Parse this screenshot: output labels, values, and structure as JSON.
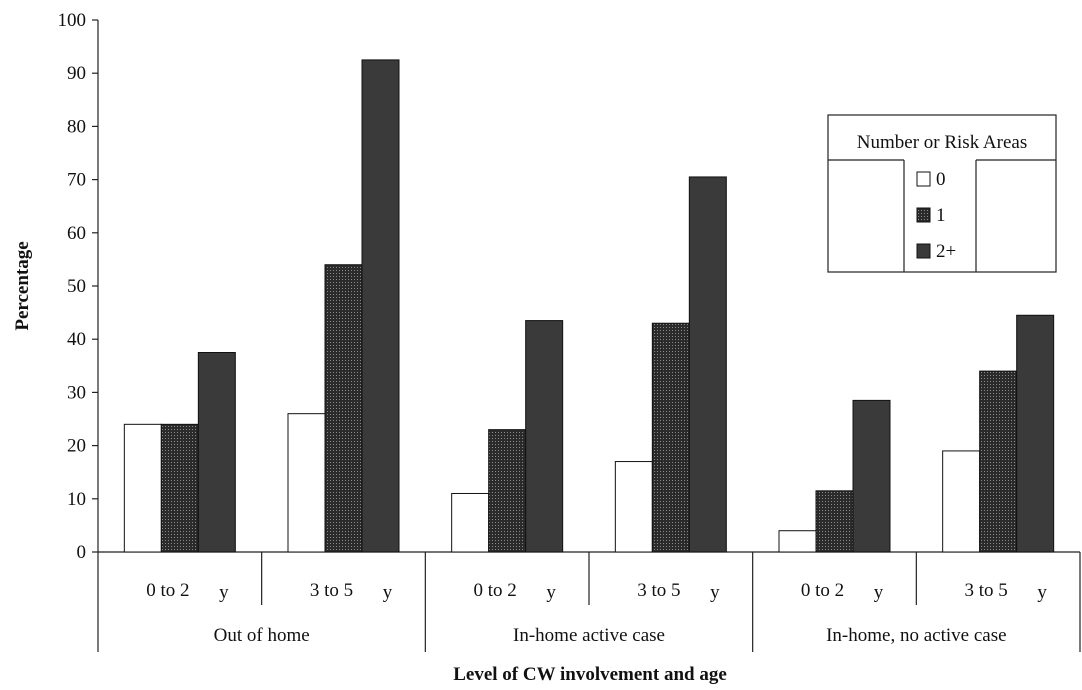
{
  "chart_data": {
    "type": "bar",
    "ylabel": "Percentage",
    "xlabel": "Level of CW involvement and age",
    "ylim": [
      0,
      100
    ],
    "yticks": [
      0,
      10,
      20,
      30,
      40,
      50,
      60,
      70,
      80,
      90,
      100
    ],
    "categories": [
      {
        "age": "0 to 2",
        "unit": "y",
        "group": "Out of home"
      },
      {
        "age": "3 to 5",
        "unit": "y",
        "group": "Out of home"
      },
      {
        "age": "0 to 2",
        "unit": "y",
        "group": "In-home active case"
      },
      {
        "age": "3 to 5",
        "unit": "y",
        "group": "In-home active case"
      },
      {
        "age": "0 to 2",
        "unit": "y",
        "group": "In-home, no active case"
      },
      {
        "age": "3 to 5",
        "unit": "y",
        "group": "In-home, no active case"
      }
    ],
    "groups": [
      "Out of home",
      "In-home active case",
      "In-home, no active case"
    ],
    "legend": {
      "title": "Number or Risk Areas",
      "position": "top-right"
    },
    "series": [
      {
        "name": "0",
        "color": "#ffffff",
        "pattern": "none",
        "values": [
          24,
          26,
          11,
          17,
          4,
          19
        ]
      },
      {
        "name": "1",
        "color": "#2a2a2a",
        "pattern": "crosshatch",
        "values": [
          24,
          54,
          23,
          43,
          11.5,
          34
        ]
      },
      {
        "name": "2+",
        "color": "#3a3a3a",
        "pattern": "solid",
        "values": [
          37.5,
          92.5,
          43.5,
          70.5,
          28.5,
          44.5
        ]
      }
    ]
  }
}
